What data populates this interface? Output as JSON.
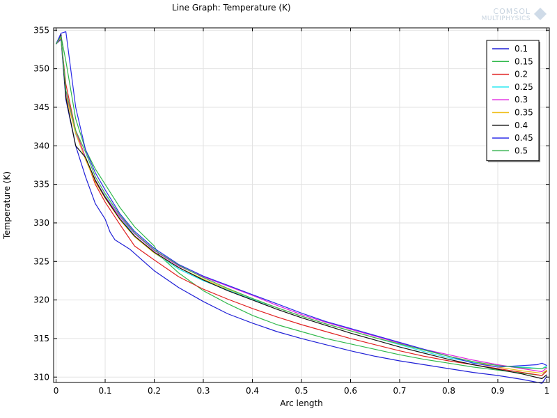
{
  "header": {
    "title": "Line Graph: Temperature (K)",
    "logo_line1": "COMSOL",
    "logo_line2": "MULTIPHYSICS"
  },
  "chart_data": {
    "type": "line",
    "title": "Line Graph: Temperature (K)",
    "xlabel": "Arc length",
    "ylabel": "Temperature (K)",
    "xlim": [
      -0.005,
      1.005
    ],
    "ylim": [
      309.3,
      355.3
    ],
    "xticks": [
      0,
      0.1,
      0.2,
      0.3,
      0.4,
      0.5,
      0.6,
      0.7,
      0.8,
      0.9,
      1
    ],
    "xtick_labels": [
      "0",
      "0.1",
      "0.2",
      "0.3",
      "0.4",
      "0.5",
      "0.6",
      "0.7",
      "0.8",
      "0.9",
      "1"
    ],
    "yticks": [
      310,
      315,
      320,
      325,
      330,
      335,
      340,
      345,
      350,
      355
    ],
    "ytick_labels": [
      "310",
      "315",
      "320",
      "325",
      "330",
      "335",
      "340",
      "345",
      "350",
      "355"
    ],
    "grid": true,
    "legend_position": "top-right",
    "series": [
      {
        "name": "0.1",
        "color": "#1f1fd6",
        "x": [
          0,
          0.01,
          0.02,
          0.04,
          0.06,
          0.08,
          0.1,
          0.11,
          0.12,
          0.15,
          0.2,
          0.25,
          0.3,
          0.35,
          0.4,
          0.45,
          0.5,
          0.55,
          0.6,
          0.65,
          0.7,
          0.75,
          0.8,
          0.85,
          0.9,
          0.95,
          0.99,
          1
        ],
        "y": [
          353.2,
          353.8,
          346,
          340,
          336,
          332.5,
          330.5,
          328.8,
          327.8,
          326.6,
          323.8,
          321.6,
          319.8,
          318.2,
          317,
          315.9,
          315,
          314.2,
          313.4,
          312.7,
          312.1,
          311.6,
          311.1,
          310.6,
          310.2,
          309.7,
          309.2,
          310.1
        ]
      },
      {
        "name": "0.15",
        "color": "#2fb84a",
        "x": [
          0,
          0.01,
          0.02,
          0.04,
          0.06,
          0.08,
          0.1,
          0.13,
          0.16,
          0.2,
          0.21,
          0.25,
          0.3,
          0.35,
          0.4,
          0.45,
          0.5,
          0.55,
          0.6,
          0.65,
          0.7,
          0.75,
          0.8,
          0.85,
          0.9,
          0.95,
          0.99,
          1
        ],
        "y": [
          353.2,
          354.3,
          351,
          343.5,
          339.5,
          337,
          335,
          332,
          329.5,
          327,
          325.8,
          323.5,
          321.2,
          319.5,
          318,
          316.8,
          315.9,
          315,
          314.3,
          313.6,
          312.9,
          312.3,
          311.8,
          311.3,
          310.9,
          310.5,
          310.2,
          310.9
        ]
      },
      {
        "name": "0.2",
        "color": "#e02020",
        "x": [
          0,
          0.01,
          0.02,
          0.04,
          0.06,
          0.08,
          0.1,
          0.13,
          0.16,
          0.2,
          0.25,
          0.3,
          0.35,
          0.4,
          0.45,
          0.5,
          0.55,
          0.6,
          0.65,
          0.7,
          0.75,
          0.8,
          0.85,
          0.9,
          0.95,
          0.99,
          1
        ],
        "y": [
          353.2,
          354,
          348,
          342,
          338.5,
          335,
          332.7,
          329.8,
          327,
          325.2,
          323,
          321.4,
          320.1,
          318.9,
          317.8,
          316.8,
          315.9,
          315,
          314.2,
          313.4,
          312.7,
          312.1,
          311.6,
          311.1,
          310.6,
          310.2,
          310.8
        ]
      },
      {
        "name": "0.25",
        "color": "#25e8f0",
        "x": [
          0,
          0.01,
          0.02,
          0.04,
          0.06,
          0.08,
          0.1,
          0.13,
          0.16,
          0.2,
          0.25,
          0.3,
          0.35,
          0.4,
          0.45,
          0.5,
          0.55,
          0.6,
          0.65,
          0.7,
          0.75,
          0.8,
          0.85,
          0.9,
          0.95,
          0.99,
          1
        ],
        "y": [
          353.2,
          354.2,
          347,
          341.5,
          338.5,
          335.5,
          333.5,
          330.8,
          328.3,
          326.1,
          324,
          322.5,
          321.3,
          320.1,
          319,
          317.9,
          316.9,
          316,
          315.1,
          314.2,
          313.3,
          312.5,
          311.9,
          311.5,
          311.3,
          311.1,
          311.5
        ]
      },
      {
        "name": "0.3",
        "color": "#e020e0",
        "x": [
          0,
          0.01,
          0.02,
          0.04,
          0.06,
          0.08,
          0.1,
          0.13,
          0.16,
          0.2,
          0.25,
          0.3,
          0.35,
          0.4,
          0.45,
          0.5,
          0.55,
          0.6,
          0.65,
          0.7,
          0.75,
          0.8,
          0.85,
          0.9,
          0.95,
          0.99,
          1
        ],
        "y": [
          353.2,
          354.4,
          346.8,
          341.8,
          338.4,
          335.6,
          333.4,
          330.8,
          328.6,
          326.4,
          324.4,
          323,
          321.8,
          320.6,
          319.3,
          318.1,
          317.1,
          316.2,
          315.3,
          314.4,
          313.6,
          312.9,
          312.2,
          311.6,
          311.1,
          310.7,
          311.2
        ]
      },
      {
        "name": "0.35",
        "color": "#f0c020",
        "x": [
          0,
          0.01,
          0.02,
          0.04,
          0.06,
          0.08,
          0.1,
          0.13,
          0.16,
          0.2,
          0.25,
          0.3,
          0.35,
          0.4,
          0.45,
          0.5,
          0.55,
          0.6,
          0.65,
          0.7,
          0.75,
          0.8,
          0.85,
          0.9,
          0.95,
          0.99,
          1
        ],
        "y": [
          353.2,
          354.1,
          346.5,
          341.6,
          338.2,
          335.3,
          333.2,
          330.4,
          328.2,
          326.1,
          324.2,
          322.7,
          321.4,
          320.2,
          319,
          317.9,
          316.9,
          316,
          315.1,
          314.3,
          313.5,
          312.7,
          312,
          311.3,
          310.8,
          310.5,
          310.9
        ]
      },
      {
        "name": "0.4",
        "color": "#111111",
        "x": [
          0,
          0.01,
          0.02,
          0.04,
          0.06,
          0.08,
          0.1,
          0.13,
          0.16,
          0.2,
          0.25,
          0.3,
          0.35,
          0.4,
          0.45,
          0.5,
          0.55,
          0.6,
          0.65,
          0.7,
          0.75,
          0.8,
          0.85,
          0.9,
          0.95,
          0.99,
          1
        ],
        "y": [
          353.2,
          354.5,
          346.3,
          340,
          338.5,
          335.5,
          333.3,
          330.5,
          328.3,
          326.2,
          324.2,
          322.6,
          321.2,
          320,
          318.8,
          317.7,
          316.7,
          315.7,
          314.8,
          313.9,
          313.1,
          312.3,
          311.6,
          311,
          310.4,
          309.8,
          310.3
        ]
      },
      {
        "name": "0.45",
        "color": "#2a2ae8",
        "x": [
          0,
          0.01,
          0.02,
          0.04,
          0.06,
          0.08,
          0.1,
          0.13,
          0.16,
          0.2,
          0.25,
          0.3,
          0.35,
          0.4,
          0.45,
          0.5,
          0.55,
          0.6,
          0.65,
          0.7,
          0.75,
          0.8,
          0.85,
          0.9,
          0.95,
          0.98,
          0.99,
          1
        ],
        "y": [
          353.2,
          354.6,
          354.8,
          345,
          339.5,
          336.5,
          334.3,
          331.2,
          328.9,
          326.7,
          324.6,
          323.1,
          321.9,
          320.7,
          319.5,
          318.3,
          317.2,
          316.3,
          315.4,
          314.5,
          313.6,
          312.7,
          311.8,
          311.3,
          311.5,
          311.6,
          311.8,
          311.5
        ]
      },
      {
        "name": "0.5",
        "color": "#3cb454",
        "x": [
          0,
          0.01,
          0.02,
          0.04,
          0.06,
          0.08,
          0.1,
          0.13,
          0.16,
          0.2,
          0.25,
          0.3,
          0.35,
          0.4,
          0.45,
          0.5,
          0.55,
          0.6,
          0.65,
          0.7,
          0.75,
          0.8,
          0.85,
          0.9,
          0.95,
          0.99,
          1
        ],
        "y": [
          353.2,
          354.2,
          347.2,
          342,
          339.2,
          336,
          333.8,
          331,
          328.7,
          326.5,
          324.5,
          322.9,
          321.5,
          320.2,
          319,
          317.9,
          316.9,
          316,
          315.1,
          314.3,
          313.5,
          312.7,
          312,
          311.5,
          311.2,
          311.1,
          311.3
        ]
      }
    ]
  }
}
